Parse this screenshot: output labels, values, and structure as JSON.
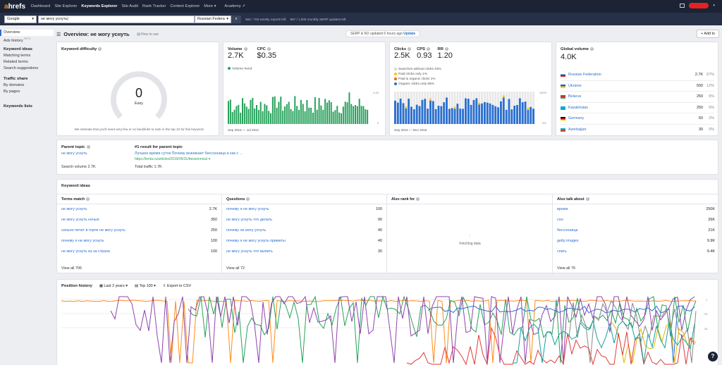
{
  "nav": {
    "logo": "ahrefs",
    "items": [
      "Dashboard",
      "Site Explorer",
      "Keywords Explorer",
      "Site Audit",
      "Rank Tracker",
      "Content Explorer",
      "More ▾",
      "Academy ↗"
    ]
  },
  "search": {
    "engine": "Google",
    "keyword": "не могу уснуть|",
    "country": "Russian Federa",
    "quota1": "584 / 700 weekly reports left",
    "quota2": "987 / 1,000 monthly SERP updates left"
  },
  "sidebar": {
    "items": [
      "Overview",
      "Ads history"
    ],
    "beta": "BETA",
    "group1": "Keyword ideas",
    "group1_items": [
      "Matching terms",
      "Related terms",
      "Search suggestions"
    ],
    "group2": "Traffic share",
    "group2_items": [
      "By domains",
      "By pages"
    ],
    "lists": "Keywords lists"
  },
  "header": {
    "title": "Overview: не могу уснуть",
    "howto": "How to use",
    "updated": "SERP & KD updated 6 hours ago",
    "update_btn": "Update",
    "add_to": "+ Add to"
  },
  "kd": {
    "title": "Keyword difficulty",
    "value": "0",
    "label": "Easy",
    "note": "We estimate that you'll need very few or no backlinks to rank in the top 10 for this keyword",
    "score": 0
  },
  "volume": {
    "title": "Volume",
    "value": "2.7K",
    "cpc_title": "CPC",
    "cpc": "$0.35",
    "legend": "Volume trend",
    "ymax": "3.2K",
    "ymin": "0",
    "range": "Sep 2015 — Jul 2021",
    "color": "#27a25b"
  },
  "clicks": {
    "clicks_title": "Clicks",
    "clicks": "2.5K",
    "cps_title": "CPS",
    "cps": "0.93",
    "rr_title": "RR",
    "rr": "1.20",
    "legend": [
      "Searches without clicks 33%",
      "Paid clicks only 1%",
      "Paid & organic clicks 1%",
      "Organic clicks only 65%"
    ],
    "colors": [
      "#e8e8e8",
      "#f5c518",
      "#e56b1f",
      "#2b6fce"
    ],
    "ymax": "100%",
    "ymin": "0%",
    "range": "Sep 2015 — Dec 2019"
  },
  "global": {
    "title": "Global volume",
    "value": "4.0K",
    "rows": [
      {
        "country": "Russian Federation",
        "vol": "2.7K",
        "pct": "67%"
      },
      {
        "country": "Ukraine",
        "vol": "500",
        "pct": "12%"
      },
      {
        "country": "Belarus",
        "vol": "250",
        "pct": "6%"
      },
      {
        "country": "Kazakhstan",
        "vol": "250",
        "pct": "6%"
      },
      {
        "country": "Germany",
        "vol": "60",
        "pct": "2%"
      },
      {
        "country": "Azerbaijan",
        "vol": "30",
        "pct": "0%"
      }
    ]
  },
  "parent": {
    "title": "Parent topic",
    "topic": "не могу уснуть",
    "volume": "Search volume 2.7K",
    "result_title": "#1 result for parent topic",
    "result_link": "Лучшее время суток Почему возникает бессонница и как с ...",
    "result_url": "https://lenta.ru/articles/2019/05/31/bessonnica/ ▾",
    "traffic": "Total traffic 1.7K"
  },
  "ideas": {
    "title": "Keyword ideas",
    "terms": {
      "header": "Terms match",
      "rows": [
        [
          "не могу уснуть",
          "2.7K"
        ],
        [
          "не могу уснуть ночью",
          "350"
        ],
        [
          "сильно печет в горле не могу уснуть",
          "250"
        ],
        [
          "почему я не могу уснуть",
          "100"
        ],
        [
          "не могу уснуть из за страха",
          "100"
        ]
      ],
      "viewall": "View all 706"
    },
    "questions": {
      "header": "Questions",
      "rows": [
        [
          "почему я не могу уснуть",
          "100"
        ],
        [
          "не могу уснуть что делать",
          "90"
        ],
        [
          "почему не могу уснуть",
          "40"
        ],
        [
          "почему я не могу уснуть приметы",
          "40"
        ],
        [
          "не могу уснуть что выпить",
          "30"
        ]
      ],
      "viewall": "View all 72"
    },
    "also_rank": {
      "header": "Also rank for",
      "fetching": "Fetching data"
    },
    "also_talk": {
      "header": "Also talk about",
      "rows": [
        [
          "время",
          "250K"
        ],
        [
          "сон",
          "26K"
        ],
        [
          "бессонница",
          "21K"
        ],
        [
          "getty images",
          "9.9K"
        ],
        [
          "спать",
          "9.4K"
        ]
      ],
      "viewall": "View all 76"
    }
  },
  "position": {
    "title": "Position history",
    "period": "Last 2 years",
    "top": "Top 100",
    "export": "Export to CSV",
    "ticks": [
      "1",
      "20",
      "40"
    ]
  },
  "help": "?"
}
